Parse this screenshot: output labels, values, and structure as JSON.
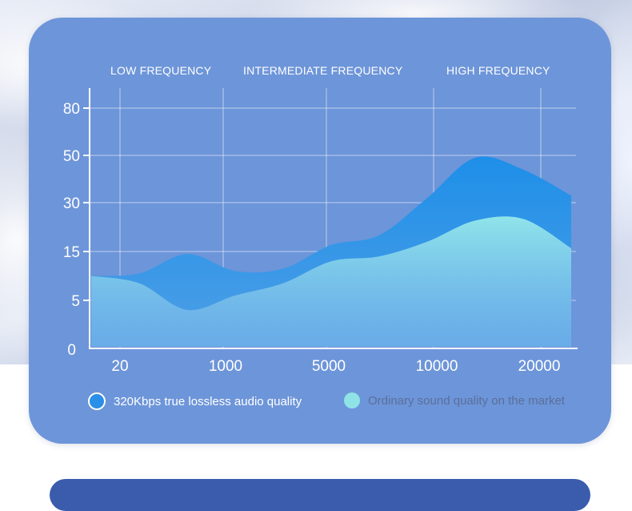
{
  "chart_data": {
    "type": "area",
    "bands": [
      "LOW FREQUENCY",
      "INTERMEDIATE FREQUENCY",
      "HIGH FREQUENCY"
    ],
    "x_ticks": [
      "20",
      "1000",
      "5000",
      "10000",
      "20000"
    ],
    "y_ticks": [
      "80",
      "50",
      "30",
      "15",
      "5",
      "0"
    ],
    "series": [
      {
        "name": "320Kbps true lossless audio quality",
        "color": "#2a8fe6",
        "values": [
          10,
          10.5,
          14.5,
          11,
          11.5,
          17,
          20,
          32,
          49,
          44,
          33
        ]
      },
      {
        "name": "Ordinary sound quality on the market",
        "color": "#8fe3e6",
        "values": [
          10,
          8.5,
          4,
          6,
          8.5,
          13,
          14,
          18,
          24.5,
          25,
          16
        ]
      }
    ]
  },
  "legend": {
    "item_a": "320Kbps true lossless audio quality",
    "item_b": "Ordinary sound quality on the market"
  }
}
